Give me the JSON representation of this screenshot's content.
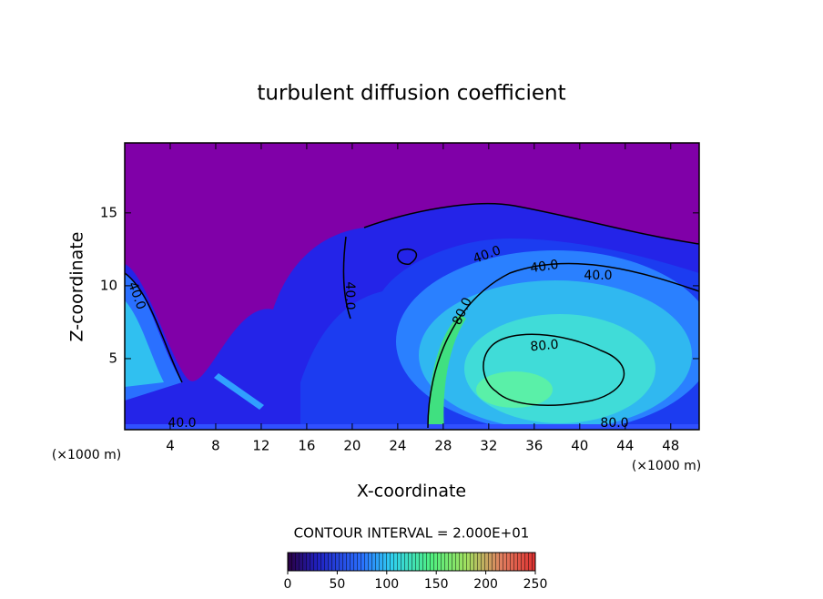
{
  "chart_data": {
    "type": "contour",
    "title": "turbulent diffusion coefficient",
    "xlabel": "X-coordinate",
    "ylabel": "Z-coordinate",
    "x_unit": "(×1000 m)",
    "xlim": [
      0,
      50.5
    ],
    "ylim": [
      0.125,
      19.8
    ],
    "xticks": [
      4,
      8,
      12,
      16,
      20,
      24,
      28,
      32,
      36,
      40,
      44,
      48
    ],
    "yticks": [
      5,
      10,
      15
    ],
    "contour_labels": [
      "40.0",
      "40.0",
      "40.0",
      "40.0",
      "40.0",
      "80.0",
      "80.0",
      "80.0",
      "40.0"
    ],
    "colorbar": {
      "title": "CONTOUR INTERVAL = 2.000E+01",
      "lim": [
        0,
        250
      ],
      "ticks": [
        0,
        50,
        100,
        150,
        200,
        250
      ]
    }
  }
}
